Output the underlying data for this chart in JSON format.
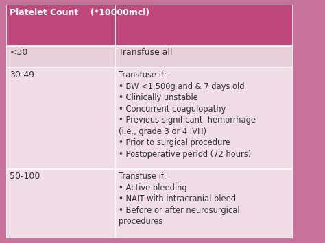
{
  "header_col1": "Platelet Count    (*10000mcl)",
  "header_col2": "",
  "header_bg": "#c0477a",
  "header_text_color": "#ffffff",
  "row1_col1": "<30",
  "row1_col2": "Transfuse all",
  "row1_bg": "#e8d0db",
  "row2_col1": "30-49",
  "row2_col2": "Transfuse if:\n• BW <1,500g and & 7 days old\n• Clinically unstable\n• Concurrent coagulopathy\n• Previous significant  hemorrhage\n(i.e., grade 3 or 4 IVH)\n• Prior to surgical procedure\n• Postoperative period (72 hours)",
  "row2_bg": "#f0dde6",
  "row3_col1": "50-100",
  "row3_col2": "Transfuse if:\n• Active bleeding\n• NAIT with intracranial bleed\n• Before or after neurosurgical\nprocedures",
  "row3_bg": "#f0dde6",
  "text_color": "#333333",
  "line_color": "#ffffff",
  "bg_color": "#c8749a",
  "col_split": 0.38,
  "figsize": [
    4.74,
    3.55
  ],
  "dpi": 100
}
